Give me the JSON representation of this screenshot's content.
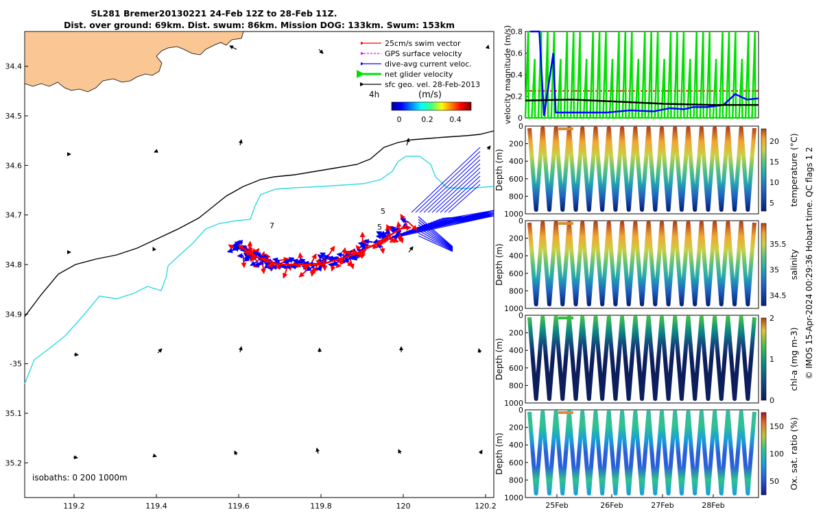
{
  "title_line1": "SL281 Bremer20130221 24-Feb 12Z to 28-Feb 11Z.",
  "title_line2": "Dist. over ground: 69km. Dist. swum: 86km. Mission DOG: 133km. Swum: 153km",
  "footer_vertical": "© IMOS 15-Apr-2024 00:29:36 Hobart time. QC flags 1  2",
  "colors": {
    "land": "#f9c694",
    "swim": "#ff0000",
    "gps": "#ff00ff",
    "dive": "#0000ff",
    "net": "#00e000",
    "sfc": "#000000",
    "isobath200": "#000000",
    "isobath1000": "#2fd9e3"
  },
  "chart_data": [
    {
      "type": "scatter",
      "name": "map",
      "xlim": [
        119.08,
        120.22
      ],
      "ylim": [
        -35.27,
        -34.33
      ],
      "x_ticks": [
        119.2,
        119.4,
        119.6,
        119.8,
        120,
        120.2
      ],
      "x_tick_labels": [
        "119.2",
        "119.4",
        "119.6",
        "119.8",
        "120",
        "120.2"
      ],
      "y_ticks": [
        -34.4,
        -34.5,
        -34.6,
        -34.7,
        -34.8,
        -34.9,
        -35,
        -35.1,
        -35.2
      ],
      "y_tick_labels": [
        "34.4",
        "34.5",
        "34.6",
        "34.7",
        "34.8",
        "34.9",
        "-35",
        "35.1",
        "35.2"
      ],
      "legend": {
        "position": "top-right",
        "items": [
          "25cm/s swim vector",
          "GPS surface velocity",
          "dive-avg current veloc.",
          "net glider velocity",
          "sfc geo. vel. 28-Feb-2013"
        ],
        "time_label": "4h"
      },
      "colorbar": {
        "title": "(m/s)",
        "ticks": [
          "0",
          "0.2",
          "0.4"
        ],
        "range": [
          0,
          0.5
        ]
      },
      "isobaths_label": "isobaths: 0   200  1000m",
      "track": [
        [
          119.6,
          -34.76
        ],
        [
          119.63,
          -34.78
        ],
        [
          119.66,
          -34.79
        ],
        [
          119.7,
          -34.8
        ],
        [
          119.75,
          -34.8
        ],
        [
          119.8,
          -34.8
        ],
        [
          119.84,
          -34.79
        ],
        [
          119.88,
          -34.78
        ],
        [
          119.93,
          -34.76
        ],
        [
          119.97,
          -34.74
        ],
        [
          120.01,
          -34.72
        ]
      ],
      "track_labels": [
        "7",
        "5",
        "5"
      ]
    },
    {
      "type": "line",
      "name": "velocity",
      "ylabel": "velocity magnitude (m/s)",
      "ylim": [
        0,
        0.8
      ],
      "y_ticks": [
        "0",
        "0.2",
        "0.4",
        "0.6",
        "0.8"
      ],
      "swim_threshold": 0.25,
      "series": [
        {
          "name": "dive-avg current veloc.",
          "x": [
            0.02,
            0.06,
            0.08,
            0.12,
            0.13,
            0.2,
            0.35,
            0.45,
            0.55,
            0.62,
            0.68,
            0.72,
            0.78,
            0.85,
            0.9,
            0.95,
            1.0
          ],
          "values": [
            0.8,
            0.8,
            0.02,
            0.6,
            0.05,
            0.05,
            0.05,
            0.07,
            0.06,
            0.09,
            0.08,
            0.1,
            0.1,
            0.12,
            0.22,
            0.17,
            0.18
          ]
        },
        {
          "name": "sfc geo. vel.",
          "x": [
            0.0,
            0.2,
            0.4,
            0.6,
            0.8,
            1.0
          ],
          "values": [
            0.16,
            0.17,
            0.15,
            0.13,
            0.12,
            0.12
          ]
        }
      ]
    },
    {
      "type": "heatmap",
      "name": "temperature",
      "colorbar_label": "temperature (°C)",
      "colorbar_ticks": [
        "5",
        "10",
        "15",
        "20"
      ],
      "range": [
        3,
        23
      ],
      "ylabel": "Depth (m)",
      "y_ticks": [
        "0",
        "200",
        "400",
        "600",
        "800",
        "1000"
      ]
    },
    {
      "type": "heatmap",
      "name": "salinity",
      "colorbar_label": "salinity",
      "colorbar_ticks": [
        "34.5",
        "35",
        "35.5"
      ],
      "range": [
        34.3,
        35.9
      ],
      "ylabel": "Depth (m)",
      "y_ticks": [
        "0",
        "200",
        "400",
        "600",
        "800",
        "1000"
      ]
    },
    {
      "type": "heatmap",
      "name": "chl-a",
      "colorbar_label": "chl-a (mg m-3)",
      "colorbar_ticks": [
        "0",
        "1",
        "2"
      ],
      "range": [
        0,
        2
      ],
      "ylabel": "Depth (m)",
      "y_ticks": [
        "0",
        "200",
        "400",
        "600",
        "800",
        "1000"
      ]
    },
    {
      "type": "heatmap",
      "name": "oxygen",
      "colorbar_label": "Ox. sat. ratio (%)",
      "colorbar_ticks": [
        "50",
        "100",
        "150"
      ],
      "range": [
        25,
        175
      ],
      "ylabel": "Depth (m)",
      "y_ticks": [
        "0",
        "200",
        "400",
        "600",
        "800",
        "1000"
      ],
      "x_tick_labels": [
        "25Feb",
        "26Feb",
        "27Feb",
        "28Feb"
      ]
    }
  ]
}
